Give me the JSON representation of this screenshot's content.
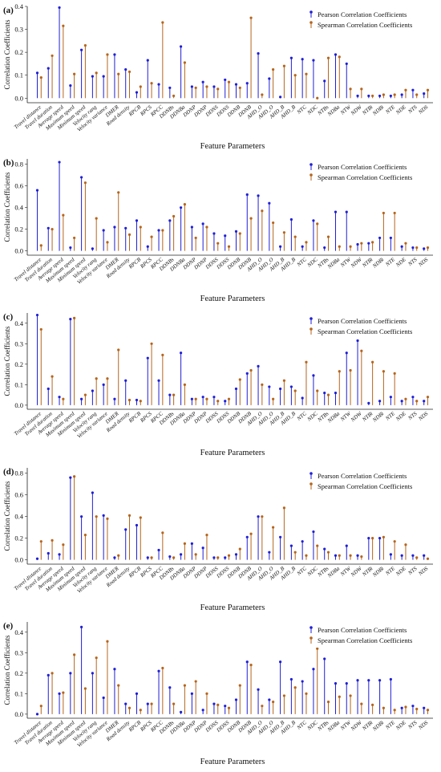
{
  "colors": {
    "pearson": "#1f1fd6",
    "spearman": "#b5651d"
  },
  "chart_data": [
    {
      "type": "stem",
      "panel_label": "(a)",
      "xlabel": "Feature Parameters",
      "ylabel": "Correlation Coefficients",
      "ylim": [
        -0.02,
        0.4
      ],
      "yticks": [
        "0.0",
        "0.1",
        "0.2",
        "0.3",
        "0.4"
      ],
      "legend_position": "top-right",
      "categories": [
        "Travel distance",
        "Travel duration",
        "Average speed",
        "Maximum speed",
        "Minimum speed",
        "Velocity rang",
        "Velocity variance",
        "DMER",
        "Road density",
        "RPCB",
        "RPCS",
        "RPCC",
        "DDNBs",
        "DDNBa",
        "DDNP",
        "DDNP",
        "DDNS",
        "DDNS",
        "DDNB",
        "DDNB",
        "AHD_O",
        "AHD_O",
        "AHD_B",
        "AHD_B",
        "NTC",
        "NDC",
        "NTBs",
        "NDBa",
        "NTW",
        "NDW",
        "NTBi",
        "NDBi",
        "NTE",
        "NDE",
        "NTS",
        "NDS"
      ],
      "series": [
        {
          "name": "Pearson Correlation Coefficients",
          "values": [
            0.11,
            0.13,
            0.395,
            0.055,
            0.21,
            0.095,
            0.095,
            0.19,
            0.125,
            0.025,
            0.165,
            0.06,
            0.045,
            0.225,
            0.05,
            0.07,
            0.05,
            0.08,
            0.06,
            0.065,
            0.195,
            0.085,
            0.005,
            0.175,
            0.17,
            0.165,
            0.075,
            0.19,
            0.15,
            0.01,
            0.01,
            0.01,
            0.01,
            0.015,
            0.035,
            0.02
          ]
        },
        {
          "name": "Spearman Correlation Coefficients",
          "values": [
            0.09,
            0.185,
            0.315,
            0.105,
            0.23,
            0.11,
            0.19,
            0.105,
            0.115,
            0.05,
            0.065,
            0.33,
            0.01,
            0.155,
            0.045,
            0.05,
            0.04,
            0.07,
            0.045,
            0.35,
            0.015,
            0.125,
            0.14,
            0.1,
            0.105,
            0.0,
            0.175,
            0.18,
            0.04,
            0.04,
            0.01,
            0.015,
            0.015,
            0.035,
            0.015,
            0.035
          ]
        }
      ]
    },
    {
      "type": "stem",
      "panel_label": "(b)",
      "xlabel": "Feature Parameters",
      "ylabel": "Correlation Coefficients",
      "ylim": [
        -0.04,
        0.85
      ],
      "yticks": [
        "0.0",
        "0.2",
        "0.4",
        "0.6",
        "0.8"
      ],
      "legend_position": "top-right",
      "categories": [
        "Travel distance",
        "Travel duration",
        "Average speed",
        "Maximum speed",
        "Minimum speed",
        "Velocity rang",
        "Velocity variance",
        "DMER",
        "Road density",
        "RPCB",
        "RPCS",
        "RPCC",
        "DDNBs",
        "DDNBa",
        "DDNP",
        "DDNP",
        "DDNS",
        "DDNS",
        "DDNB",
        "DDNB",
        "AHD_O",
        "AHD_O",
        "AHD_B",
        "AHD_B",
        "NTC",
        "NDC",
        "NTBs",
        "NDBa",
        "NTW",
        "NDW",
        "NTBi",
        "NDBi",
        "NTE",
        "NDE",
        "NTS",
        "NDS"
      ],
      "series": [
        {
          "name": "Pearson Correlation Coefficients",
          "values": [
            0.56,
            0.21,
            0.82,
            0.03,
            0.68,
            0.02,
            0.19,
            0.22,
            0.21,
            0.28,
            0.04,
            0.19,
            0.28,
            0.4,
            0.22,
            0.25,
            0.16,
            0.14,
            0.18,
            0.52,
            0.51,
            0.44,
            0.04,
            0.29,
            0.04,
            0.28,
            0.03,
            0.36,
            0.36,
            0.06,
            0.07,
            0.12,
            0.12,
            0.04,
            0.03,
            0.02
          ]
        },
        {
          "name": "Spearman Correlation Coefficients",
          "values": [
            0.05,
            0.2,
            0.33,
            0.12,
            0.63,
            0.3,
            0.08,
            0.54,
            0.15,
            0.22,
            0.13,
            0.19,
            0.32,
            0.43,
            0.12,
            0.22,
            0.07,
            0.04,
            0.16,
            0.3,
            0.37,
            0.26,
            0.17,
            0.13,
            0.08,
            0.25,
            0.13,
            0.04,
            0.04,
            0.07,
            0.08,
            0.35,
            0.35,
            0.07,
            0.03,
            0.03
          ]
        }
      ]
    },
    {
      "type": "stem",
      "panel_label": "(c)",
      "xlabel": "Feature Parameters",
      "ylabel": "Correlation Coefficients",
      "ylim": [
        -0.02,
        0.45
      ],
      "yticks": [
        "0.0",
        "0.1",
        "0.2",
        "0.3",
        "0.4"
      ],
      "legend_position": "top-right",
      "categories": [
        "Travel distance",
        "Travel duration",
        "Average speed",
        "Maximum speed",
        "Minimum speed",
        "Velocity rang",
        "Velocity variance",
        "DMER",
        "Road density",
        "RPCB",
        "RPCS",
        "RPCC",
        "DDNBs",
        "DDNBa",
        "DDNP",
        "DDNP",
        "DDNS",
        "DDNS",
        "DDNB",
        "DDNB",
        "AHD_O",
        "AHD_O",
        "AHD_B",
        "AHD_B",
        "NTC",
        "NDC",
        "NTBs",
        "NDBa",
        "NTW",
        "NDW",
        "NTBi",
        "NDBi",
        "NTE",
        "NDE",
        "NTS",
        "NDS"
      ],
      "series": [
        {
          "name": "Pearson Correlation Coefficients",
          "values": [
            0.44,
            0.08,
            0.04,
            0.42,
            0.03,
            0.07,
            0.1,
            0.03,
            0.12,
            0.025,
            0.23,
            0.12,
            0.05,
            0.255,
            0.03,
            0.04,
            0.04,
            0.02,
            0.08,
            0.155,
            0.19,
            0.09,
            0.08,
            0.09,
            0.035,
            0.145,
            0.06,
            0.06,
            0.255,
            0.315,
            0.01,
            0.02,
            0.04,
            0.02,
            0.04,
            0.02
          ]
        },
        {
          "name": "Spearman Correlation Coefficients",
          "values": [
            0.37,
            0.14,
            0.03,
            0.425,
            0.05,
            0.13,
            0.13,
            0.27,
            0.025,
            0.02,
            0.3,
            0.245,
            0.05,
            0.1,
            0.03,
            0.03,
            0.02,
            0.03,
            0.125,
            0.17,
            0.1,
            0.03,
            0.12,
            0.07,
            0.21,
            0.07,
            0.05,
            0.165,
            0.17,
            0.265,
            0.21,
            0.165,
            0.155,
            0.03,
            0.02,
            0.04
          ]
        }
      ]
    },
    {
      "type": "stem",
      "panel_label": "(d)",
      "xlabel": "Feature Parameters",
      "ylabel": "Correlation Coefficients",
      "ylim": [
        -0.04,
        0.85
      ],
      "yticks": [
        "0.0",
        "0.2",
        "0.4",
        "0.6",
        "0.8"
      ],
      "legend_position": "top-right",
      "categories": [
        "Travel distance",
        "Travel duration",
        "Average speed",
        "Maximum speed",
        "Minimum speed",
        "Velocity rang",
        "Velocity variance",
        "DMER",
        "Road density",
        "RPCB",
        "RPCS",
        "RPCC",
        "DDNBs",
        "DDNBa",
        "DDNP",
        "DDNP",
        "DDNS",
        "DDNS",
        "DDNB",
        "DDNB",
        "AHD_O",
        "AHD_O",
        "AHD_B",
        "AHD_B",
        "NTC",
        "NDC",
        "NTBs",
        "NDBa",
        "NTW",
        "NDW",
        "NTBi",
        "NDBi",
        "NTE",
        "NDE",
        "NTS",
        "NDS"
      ],
      "series": [
        {
          "name": "Pearson Correlation Coefficients",
          "values": [
            0.01,
            0.06,
            0.05,
            0.76,
            0.4,
            0.62,
            0.41,
            0.02,
            0.28,
            0.32,
            0.02,
            0.09,
            0.03,
            0.05,
            0.15,
            0.11,
            0.02,
            0.02,
            0.05,
            0.21,
            0.4,
            0.07,
            0.21,
            0.13,
            0.17,
            0.26,
            0.1,
            0.04,
            0.13,
            0.04,
            0.2,
            0.2,
            0.05,
            0.04,
            0.04,
            0.04
          ]
        },
        {
          "name": "Spearman Correlation Coefficients",
          "values": [
            0.17,
            0.18,
            0.14,
            0.77,
            0.23,
            0.4,
            0.38,
            0.04,
            0.41,
            0.39,
            0.02,
            0.25,
            0.02,
            0.15,
            0.05,
            0.23,
            0.02,
            0.04,
            0.1,
            0.24,
            0.4,
            0.3,
            0.48,
            0.07,
            0.04,
            0.13,
            0.07,
            0.04,
            0.04,
            0.03,
            0.2,
            0.21,
            0.17,
            0.14,
            0.02,
            0.01
          ]
        }
      ]
    },
    {
      "type": "stem",
      "panel_label": "(e)",
      "xlabel": "Feature Parameters",
      "ylabel": "Correlation Coefficients",
      "ylim": [
        -0.02,
        0.45
      ],
      "yticks": [
        "0.0",
        "0.1",
        "0.2",
        "0.3",
        "0.4"
      ],
      "legend_position": "top-right",
      "categories": [
        "Travel distance",
        "Travel duration",
        "Average speed",
        "Maximum speed",
        "Minimum speed",
        "Velocity rang",
        "Velocity variance",
        "DMER",
        "Road density",
        "RPCB",
        "RPCS",
        "RPCC",
        "DDNBs",
        "DDNBa",
        "DDNP",
        "DDNP",
        "DDNS",
        "DDNS",
        "DDNB",
        "DDNB",
        "AHD_O",
        "AHD_O",
        "AHD_B",
        "AHD_B",
        "NTC",
        "NDC",
        "NTBs",
        "NDBa",
        "NTW",
        "NDW",
        "NTBi",
        "NDBi",
        "NTE",
        "NDE",
        "NTS",
        "NDS"
      ],
      "series": [
        {
          "name": "Pearson Correlation Coefficients",
          "values": [
            0.0,
            0.19,
            0.1,
            0.2,
            0.425,
            0.2,
            0.08,
            0.22,
            0.05,
            0.1,
            0.05,
            0.21,
            0.13,
            0.01,
            0.1,
            0.02,
            0.05,
            0.04,
            0.07,
            0.255,
            0.12,
            0.07,
            0.255,
            0.17,
            0.16,
            0.22,
            0.27,
            0.15,
            0.15,
            0.165,
            0.165,
            0.165,
            0.17,
            0.03,
            0.04,
            0.03
          ]
        },
        {
          "name": "Spearman Correlation Coefficients",
          "values": [
            0.04,
            0.2,
            0.105,
            0.29,
            0.125,
            0.275,
            0.355,
            0.14,
            0.03,
            0.02,
            0.05,
            0.225,
            0.05,
            0.14,
            0.16,
            0.1,
            0.045,
            0.03,
            0.14,
            0.24,
            0.04,
            0.06,
            0.09,
            0.13,
            0.1,
            0.32,
            0.06,
            0.085,
            0.09,
            0.05,
            0.045,
            0.03,
            0.02,
            0.035,
            0.025,
            0.02
          ]
        }
      ]
    }
  ]
}
